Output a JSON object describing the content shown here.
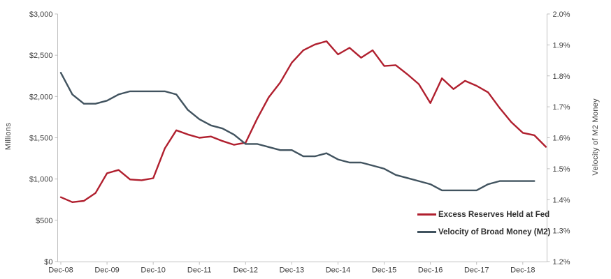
{
  "chart": {
    "type": "line",
    "title": "",
    "x_categories": [
      "Dec-08",
      "Mar-09",
      "Jun-09",
      "Sep-09",
      "Dec-09",
      "Mar-10",
      "Jun-10",
      "Sep-10",
      "Dec-10",
      "Mar-11",
      "Jun-11",
      "Sep-11",
      "Dec-11",
      "Mar-12",
      "Jun-12",
      "Sep-12",
      "Dec-12",
      "Mar-13",
      "Jun-13",
      "Sep-13",
      "Dec-13",
      "Mar-14",
      "Jun-14",
      "Sep-14",
      "Dec-14",
      "Mar-15",
      "Jun-15",
      "Sep-15",
      "Dec-15",
      "Mar-16",
      "Jun-16",
      "Sep-16",
      "Dec-16",
      "Mar-17",
      "Jun-17",
      "Sep-17",
      "Dec-17",
      "Mar-18",
      "Jun-18",
      "Sep-18",
      "Dec-18",
      "Mar-19",
      "Jun-19"
    ],
    "x_tick_labels": [
      "Dec-08",
      "Dec-09",
      "Dec-10",
      "Dec-11",
      "Dec-12",
      "Dec-13",
      "Dec-14",
      "Dec-15",
      "Dec-16",
      "Dec-17",
      "Dec-18"
    ],
    "left_axis": {
      "title": "Millions",
      "min": 0,
      "max": 3000,
      "tick_step": 500,
      "ticks": [
        "$0",
        "$500",
        "$1,000",
        "$1,500",
        "$2,000",
        "$2,500",
        "$3,000"
      ]
    },
    "right_axis": {
      "title": "Velocity of M2 Money",
      "min": 1.2,
      "max": 2.0,
      "tick_step": 0.1,
      "ticks": [
        "1.2%",
        "1.3%",
        "1.4%",
        "1.5%",
        "1.6%",
        "1.7%",
        "1.8%",
        "1.9%",
        "2.0%"
      ]
    },
    "grid": false,
    "legend_position": "inside-lower-right",
    "series": [
      {
        "name": "Excess Reserves Held at Fed",
        "axis": "left",
        "color": "#B01F2E",
        "values": [
          780,
          720,
          735,
          830,
          1070,
          1110,
          995,
          985,
          1010,
          1370,
          1590,
          1540,
          1500,
          1515,
          1460,
          1415,
          1440,
          1730,
          1990,
          2170,
          2410,
          2560,
          2630,
          2670,
          2510,
          2590,
          2470,
          2560,
          2370,
          2380,
          2270,
          2150,
          1920,
          2220,
          2090,
          2190,
          2130,
          2050,
          1860,
          1690,
          1560,
          1530,
          1390
        ]
      },
      {
        "name": "Velocity of Broad Money (M2)",
        "axis": "right",
        "color": "#41535F",
        "values": [
          1.81,
          1.74,
          1.71,
          1.71,
          1.72,
          1.74,
          1.75,
          1.75,
          1.75,
          1.75,
          1.74,
          1.69,
          1.66,
          1.64,
          1.63,
          1.61,
          1.58,
          1.58,
          1.57,
          1.56,
          1.56,
          1.54,
          1.54,
          1.55,
          1.53,
          1.52,
          1.52,
          1.51,
          1.5,
          1.48,
          1.47,
          1.46,
          1.45,
          1.43,
          1.43,
          1.43,
          1.43,
          1.45,
          1.46,
          1.46,
          1.46,
          1.46
        ]
      }
    ],
    "colors": {
      "axis_line": "#BFBFBF",
      "tick_text": "#404040",
      "background": "#FFFFFF"
    }
  }
}
